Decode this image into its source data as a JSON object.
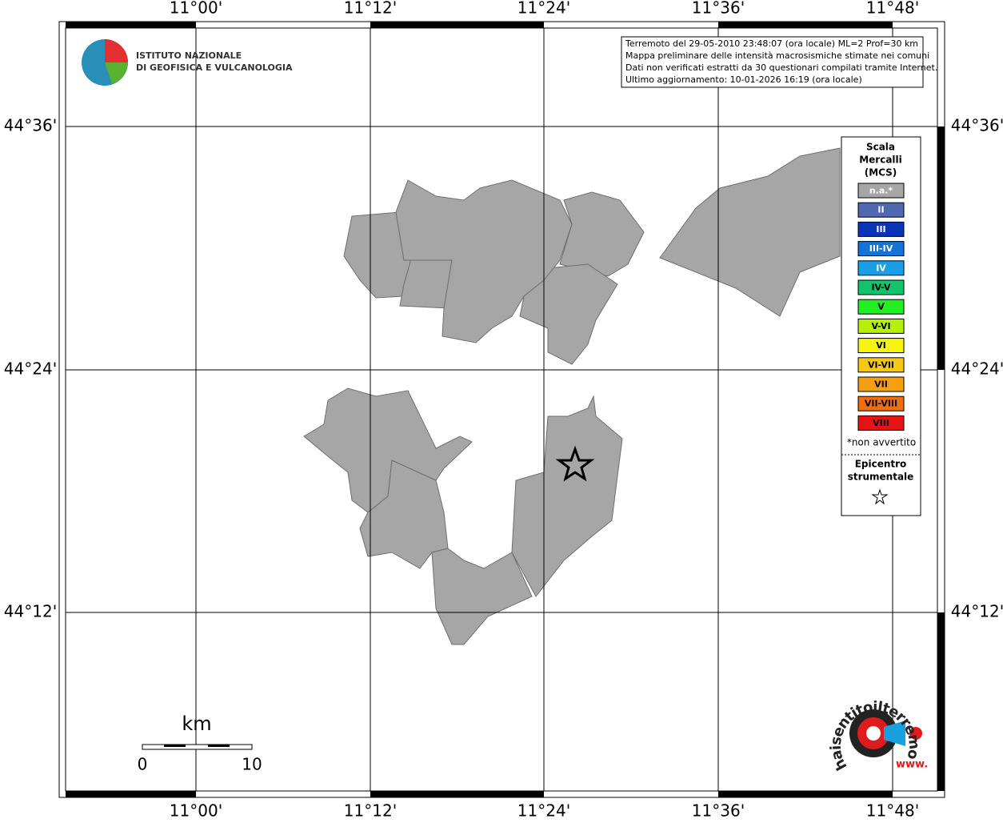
{
  "map": {
    "longitude_labels": [
      "11°00'",
      "11°12'",
      "11°24'",
      "11°36'",
      "11°48'"
    ],
    "latitude_labels": [
      "44°36'",
      "44°24'",
      "44°12'"
    ],
    "info": [
      "Terremoto del 29-05-2010 23:48:07 (ora locale) ML=2 Prof=30 km",
      "Mappa preliminare delle intensità macrosismiche stimate nei comuni",
      "Dati non verificati estratti da 30 questionari compilati tramite Internet.",
      "Ultimo aggiornamento: 10-01-2026 16:19 (ora locale)"
    ],
    "logo": [
      "ISTITUTO NAZIONALE",
      "DI GEOFISICA E VULCANOLOGIA"
    ],
    "legend": {
      "title": [
        "Scala",
        "Mercalli",
        "(MCS)"
      ],
      "items": [
        {
          "label": "n.a.*",
          "color": "#a6a6a6",
          "text_color": "#ffffff"
        },
        {
          "label": "II",
          "color": "#5068b0",
          "text_color": "#ffffff"
        },
        {
          "label": "III",
          "color": "#0a34b8",
          "text_color": "#ffffff"
        },
        {
          "label": "III-IV",
          "color": "#1473d6",
          "text_color": "#ffffff"
        },
        {
          "label": "IV",
          "color": "#1a9ee6",
          "text_color": "#ffffff"
        },
        {
          "label": "IV-V",
          "color": "#12c46a",
          "text_color": "#000000"
        },
        {
          "label": "V",
          "color": "#22f022",
          "text_color": "#000000"
        },
        {
          "label": "V-VI",
          "color": "#b4f00a",
          "text_color": "#000000"
        },
        {
          "label": "VI",
          "color": "#f5f512",
          "text_color": "#000000"
        },
        {
          "label": "VI-VII",
          "color": "#f5c812",
          "text_color": "#000000"
        },
        {
          "label": "VII",
          "color": "#f5a012",
          "text_color": "#000000"
        },
        {
          "label": "VII-VIII",
          "color": "#f06e12",
          "text_color": "#000000"
        },
        {
          "label": "VIII",
          "color": "#e61414",
          "text_color": "#000000"
        }
      ],
      "note": "*non avvertito",
      "epicenter": [
        "Epicentro",
        "strumentale"
      ]
    },
    "scale": {
      "unit": "km",
      "ticks": [
        "0",
        "10"
      ]
    },
    "site_logo": {
      "text": "haisentitoilterremoto.it",
      "prefix": "www."
    }
  }
}
